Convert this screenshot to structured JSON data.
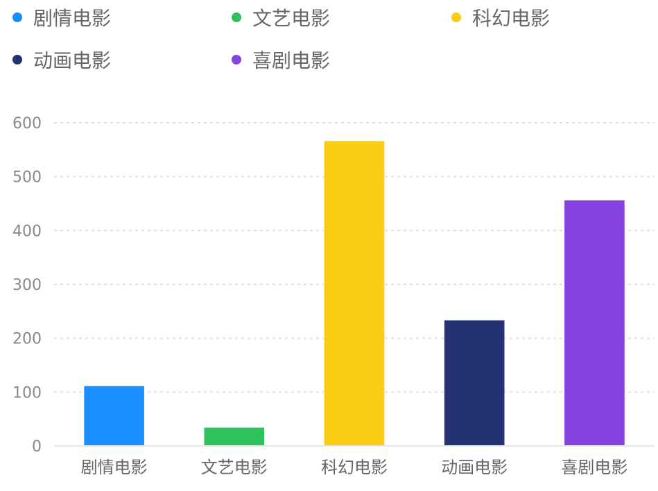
{
  "chart_data": {
    "type": "bar",
    "title": "",
    "xlabel": "",
    "ylabel": "",
    "categories": [
      "剧情电影",
      "文艺电影",
      "科幻电影",
      "动画电影",
      "喜剧电影"
    ],
    "values": [
      111,
      34,
      566,
      233,
      456
    ],
    "colors": [
      "#1890ff",
      "#2fc25b",
      "#facc14",
      "#223273",
      "#8543e0"
    ],
    "ylim": [
      0,
      600
    ],
    "yticks": [
      0,
      100,
      200,
      300,
      400,
      500,
      600
    ],
    "grid": true,
    "legend": {
      "position": "top",
      "items": [
        {
          "label": "剧情电影",
          "color": "#1890ff"
        },
        {
          "label": "文艺电影",
          "color": "#2fc25b"
        },
        {
          "label": "科幻电影",
          "color": "#facc14"
        },
        {
          "label": "动画电影",
          "color": "#223273"
        },
        {
          "label": "喜剧电影",
          "color": "#8543e0"
        }
      ]
    }
  }
}
